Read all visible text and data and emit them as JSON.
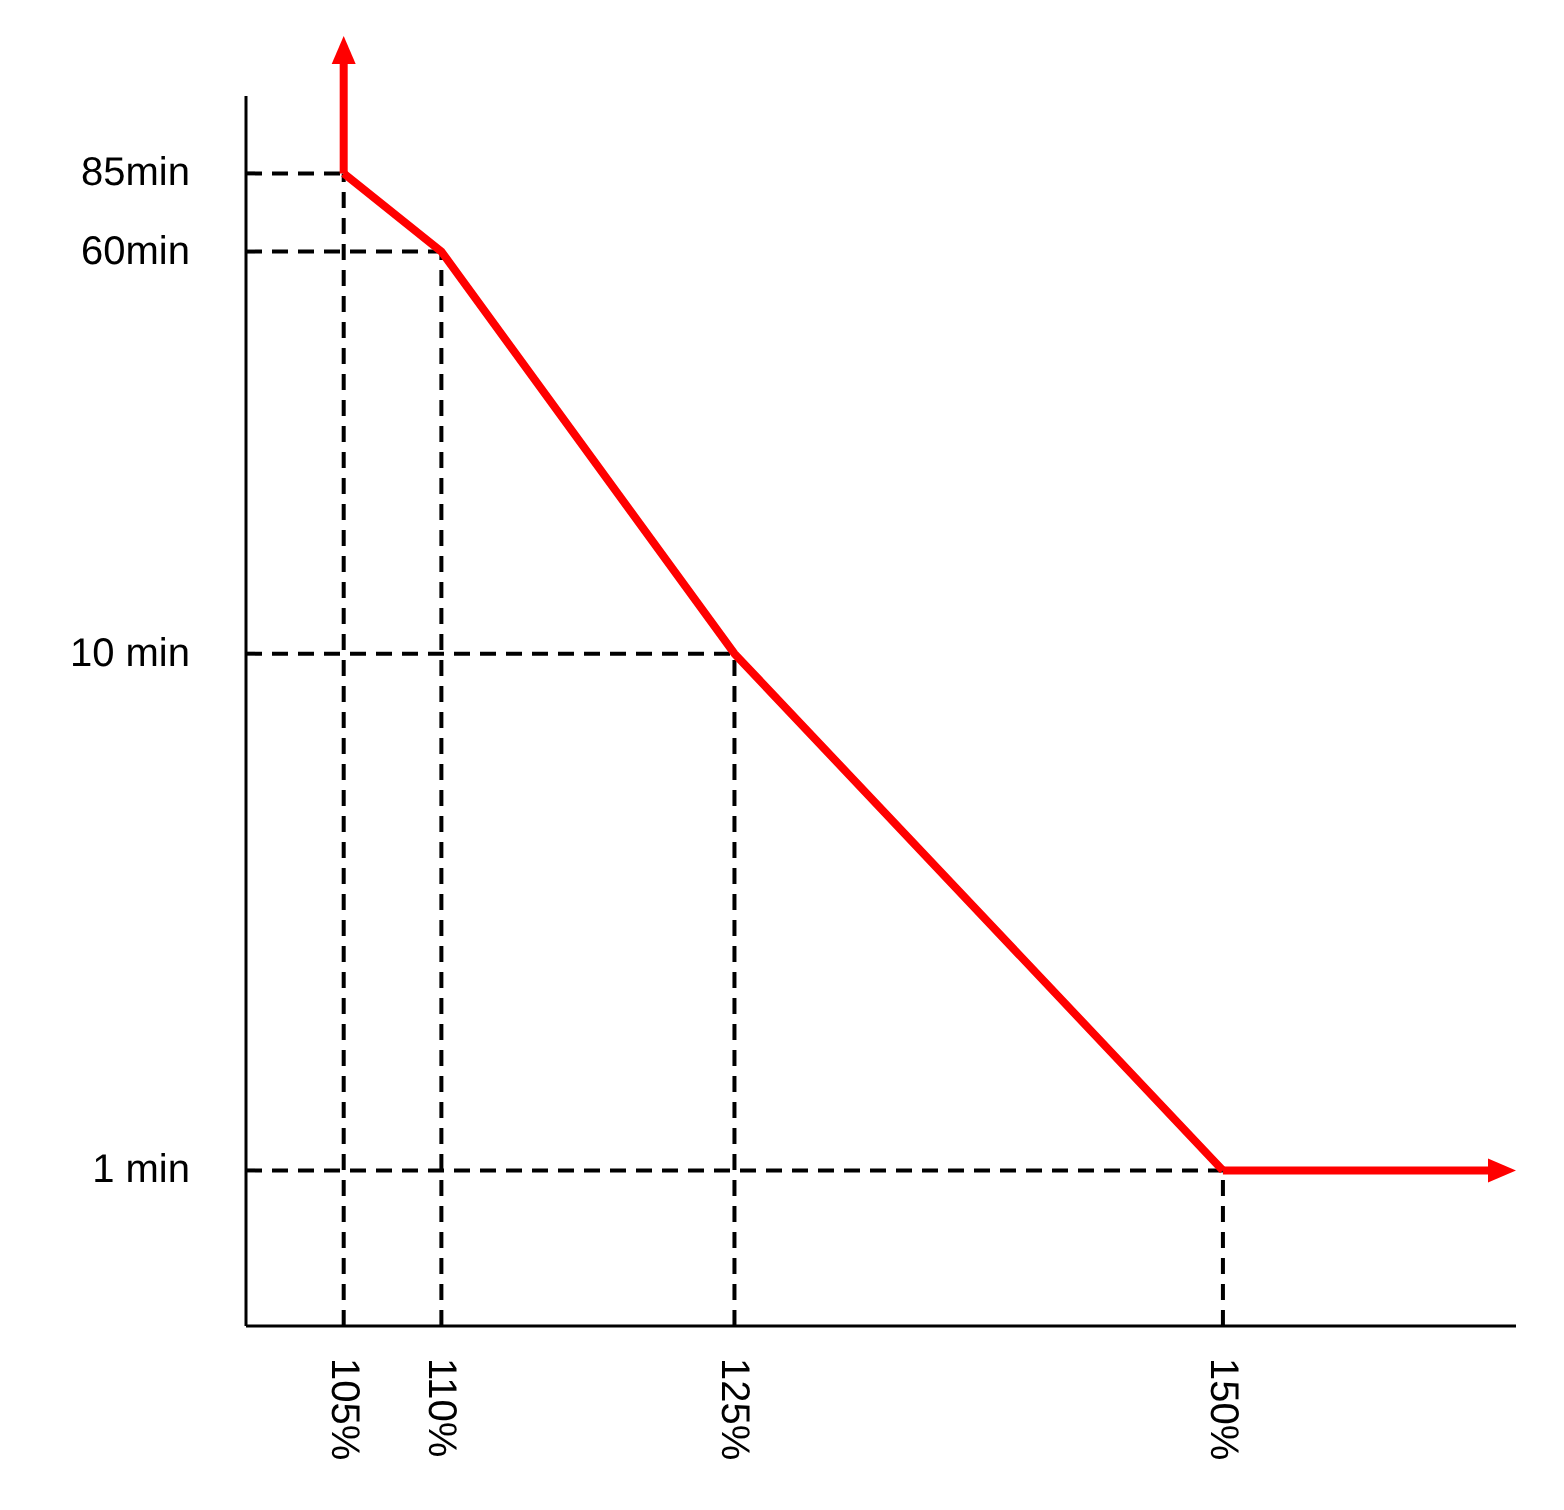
{
  "chart_data": {
    "type": "line",
    "series": [
      {
        "color": "#ff0000",
        "x": [
          105,
          110,
          125,
          150
        ],
        "values": [
          85,
          60,
          10,
          1
        ],
        "line_style": "solid"
      },
      {
        "color": "#000000",
        "x": [
          105,
          105
        ],
        "values": [
          0.5,
          85
        ],
        "line_style": "dashed"
      },
      {
        "color": "#000000",
        "x": [
          110,
          110
        ],
        "values": [
          0.5,
          60
        ],
        "line_style": "dashed"
      },
      {
        "color": "#000000",
        "x": [
          125,
          125
        ],
        "values": [
          0.5,
          10
        ],
        "line_style": "dashed"
      },
      {
        "color": "#000000",
        "x": [
          150,
          150
        ],
        "values": [
          0.5,
          1
        ],
        "line_style": "dashed"
      },
      {
        "color": "#000000",
        "x": [
          100,
          105
        ],
        "values": [
          85,
          85
        ],
        "line_style": "dashed"
      },
      {
        "color": "#000000",
        "x": [
          100,
          110
        ],
        "values": [
          60,
          60
        ],
        "line_style": "dashed"
      },
      {
        "color": "#000000",
        "x": [
          100,
          125
        ],
        "values": [
          10,
          10
        ],
        "line_style": "dashed"
      },
      {
        "color": "#000000",
        "x": [
          100,
          150
        ],
        "values": [
          1,
          1
        ],
        "line_style": "dashed"
      }
    ],
    "xlim": [
      100,
      165
    ],
    "ylim": [
      0.5,
      120
    ],
    "log": "y",
    "xticks": [
      {
        "value": 105,
        "label": "105%"
      },
      {
        "value": 110,
        "label": "110%"
      },
      {
        "value": 125,
        "label": "125%"
      },
      {
        "value": 150,
        "label": "150%"
      }
    ],
    "yticks": [
      {
        "value": 1,
        "label": "1 min"
      },
      {
        "value": 10,
        "label": "10 min"
      },
      {
        "value": 60,
        "label": "60min"
      },
      {
        "value": 85,
        "label": "85min"
      }
    ],
    "marker": "none"
  }
}
